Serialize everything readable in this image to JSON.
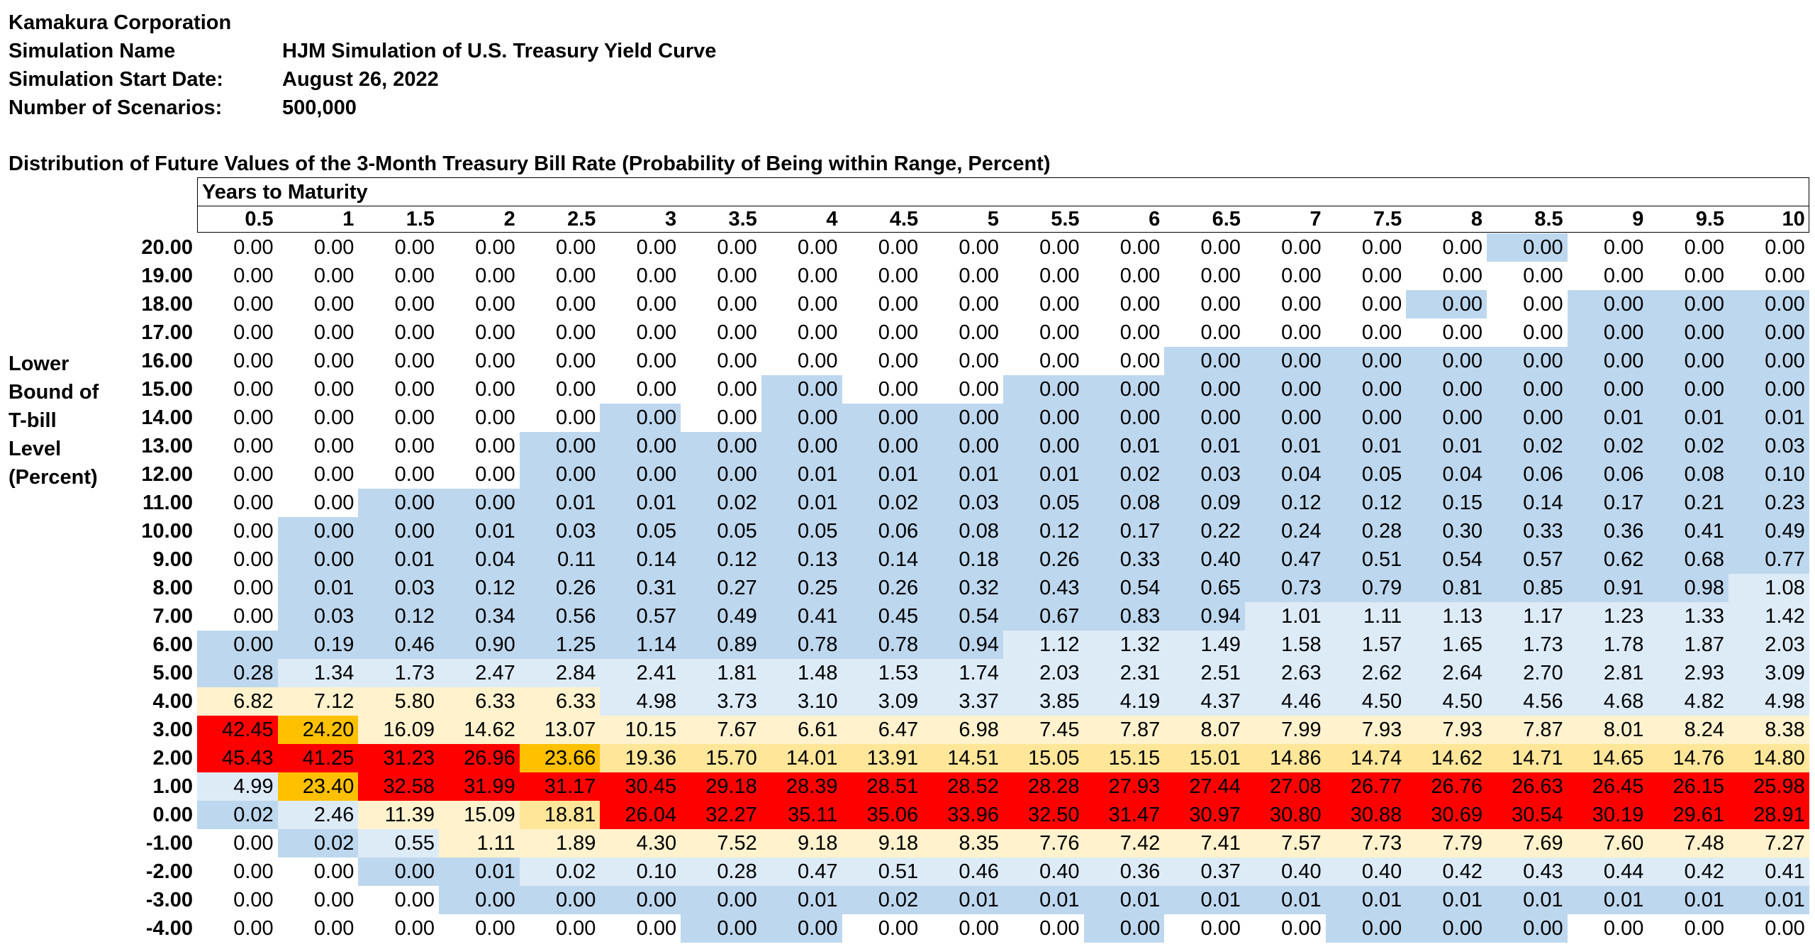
{
  "header": {
    "company": "Kamakura Corporation",
    "rows": [
      {
        "label": "Simulation Name",
        "value": "HJM Simulation of U.S. Treasury Yield Curve"
      },
      {
        "label": "Simulation Start Date:",
        "value": "August 26, 2022"
      },
      {
        "label": "Number of Scenarios:",
        "value": "500,000"
      }
    ]
  },
  "table_title": "Distribution of Future Values of the 3-Month Treasury Bill Rate (Probability of Being within Range, Percent)",
  "row_axis_label_lines": [
    "Lower",
    "Bound of",
    "T-bill",
    "Level",
    "(Percent)"
  ],
  "column_axis_label": "Years to Maturity",
  "columns": [
    "0.5",
    "1",
    "1.5",
    "2",
    "2.5",
    "3",
    "3.5",
    "4",
    "4.5",
    "5",
    "5.5",
    "6",
    "6.5",
    "7",
    "7.5",
    "8",
    "8.5",
    "9",
    "9.5",
    "10"
  ],
  "rows": [
    {
      "lower": "20.00",
      "values": [
        "0.00",
        "0.00",
        "0.00",
        "0.00",
        "0.00",
        "0.00",
        "0.00",
        "0.00",
        "0.00",
        "0.00",
        "0.00",
        "0.00",
        "0.00",
        "0.00",
        "0.00",
        "0.00",
        "0.00",
        "0.00",
        "0.00",
        "0.00"
      ]
    },
    {
      "lower": "19.00",
      "values": [
        "0.00",
        "0.00",
        "0.00",
        "0.00",
        "0.00",
        "0.00",
        "0.00",
        "0.00",
        "0.00",
        "0.00",
        "0.00",
        "0.00",
        "0.00",
        "0.00",
        "0.00",
        "0.00",
        "0.00",
        "0.00",
        "0.00",
        "0.00"
      ]
    },
    {
      "lower": "18.00",
      "values": [
        "0.00",
        "0.00",
        "0.00",
        "0.00",
        "0.00",
        "0.00",
        "0.00",
        "0.00",
        "0.00",
        "0.00",
        "0.00",
        "0.00",
        "0.00",
        "0.00",
        "0.00",
        "0.00",
        "0.00",
        "0.00",
        "0.00",
        "0.00"
      ]
    },
    {
      "lower": "17.00",
      "values": [
        "0.00",
        "0.00",
        "0.00",
        "0.00",
        "0.00",
        "0.00",
        "0.00",
        "0.00",
        "0.00",
        "0.00",
        "0.00",
        "0.00",
        "0.00",
        "0.00",
        "0.00",
        "0.00",
        "0.00",
        "0.00",
        "0.00",
        "0.00"
      ]
    },
    {
      "lower": "16.00",
      "values": [
        "0.00",
        "0.00",
        "0.00",
        "0.00",
        "0.00",
        "0.00",
        "0.00",
        "0.00",
        "0.00",
        "0.00",
        "0.00",
        "0.00",
        "0.00",
        "0.00",
        "0.00",
        "0.00",
        "0.00",
        "0.00",
        "0.00",
        "0.00"
      ]
    },
    {
      "lower": "15.00",
      "values": [
        "0.00",
        "0.00",
        "0.00",
        "0.00",
        "0.00",
        "0.00",
        "0.00",
        "0.00",
        "0.00",
        "0.00",
        "0.00",
        "0.00",
        "0.00",
        "0.00",
        "0.00",
        "0.00",
        "0.00",
        "0.00",
        "0.00",
        "0.00"
      ]
    },
    {
      "lower": "14.00",
      "values": [
        "0.00",
        "0.00",
        "0.00",
        "0.00",
        "0.00",
        "0.00",
        "0.00",
        "0.00",
        "0.00",
        "0.00",
        "0.00",
        "0.00",
        "0.00",
        "0.00",
        "0.00",
        "0.00",
        "0.00",
        "0.01",
        "0.01",
        "0.01"
      ]
    },
    {
      "lower": "13.00",
      "values": [
        "0.00",
        "0.00",
        "0.00",
        "0.00",
        "0.00",
        "0.00",
        "0.00",
        "0.00",
        "0.00",
        "0.00",
        "0.00",
        "0.01",
        "0.01",
        "0.01",
        "0.01",
        "0.01",
        "0.02",
        "0.02",
        "0.02",
        "0.03"
      ]
    },
    {
      "lower": "12.00",
      "values": [
        "0.00",
        "0.00",
        "0.00",
        "0.00",
        "0.00",
        "0.00",
        "0.00",
        "0.01",
        "0.01",
        "0.01",
        "0.01",
        "0.02",
        "0.03",
        "0.04",
        "0.05",
        "0.04",
        "0.06",
        "0.06",
        "0.08",
        "0.10"
      ]
    },
    {
      "lower": "11.00",
      "values": [
        "0.00",
        "0.00",
        "0.00",
        "0.00",
        "0.01",
        "0.01",
        "0.02",
        "0.01",
        "0.02",
        "0.03",
        "0.05",
        "0.08",
        "0.09",
        "0.12",
        "0.12",
        "0.15",
        "0.14",
        "0.17",
        "0.21",
        "0.23"
      ]
    },
    {
      "lower": "10.00",
      "values": [
        "0.00",
        "0.00",
        "0.00",
        "0.01",
        "0.03",
        "0.05",
        "0.05",
        "0.05",
        "0.06",
        "0.08",
        "0.12",
        "0.17",
        "0.22",
        "0.24",
        "0.28",
        "0.30",
        "0.33",
        "0.36",
        "0.41",
        "0.49"
      ]
    },
    {
      "lower": "9.00",
      "values": [
        "0.00",
        "0.00",
        "0.01",
        "0.04",
        "0.11",
        "0.14",
        "0.12",
        "0.13",
        "0.14",
        "0.18",
        "0.26",
        "0.33",
        "0.40",
        "0.47",
        "0.51",
        "0.54",
        "0.57",
        "0.62",
        "0.68",
        "0.77"
      ]
    },
    {
      "lower": "8.00",
      "values": [
        "0.00",
        "0.01",
        "0.03",
        "0.12",
        "0.26",
        "0.31",
        "0.27",
        "0.25",
        "0.26",
        "0.32",
        "0.43",
        "0.54",
        "0.65",
        "0.73",
        "0.79",
        "0.81",
        "0.85",
        "0.91",
        "0.98",
        "1.08"
      ]
    },
    {
      "lower": "7.00",
      "values": [
        "0.00",
        "0.03",
        "0.12",
        "0.34",
        "0.56",
        "0.57",
        "0.49",
        "0.41",
        "0.45",
        "0.54",
        "0.67",
        "0.83",
        "0.94",
        "1.01",
        "1.11",
        "1.13",
        "1.17",
        "1.23",
        "1.33",
        "1.42"
      ]
    },
    {
      "lower": "6.00",
      "values": [
        "0.00",
        "0.19",
        "0.46",
        "0.90",
        "1.25",
        "1.14",
        "0.89",
        "0.78",
        "0.78",
        "0.94",
        "1.12",
        "1.32",
        "1.49",
        "1.58",
        "1.57",
        "1.65",
        "1.73",
        "1.78",
        "1.87",
        "2.03"
      ]
    },
    {
      "lower": "5.00",
      "values": [
        "0.28",
        "1.34",
        "1.73",
        "2.47",
        "2.84",
        "2.41",
        "1.81",
        "1.48",
        "1.53",
        "1.74",
        "2.03",
        "2.31",
        "2.51",
        "2.63",
        "2.62",
        "2.64",
        "2.70",
        "2.81",
        "2.93",
        "3.09"
      ]
    },
    {
      "lower": "4.00",
      "values": [
        "6.82",
        "7.12",
        "5.80",
        "6.33",
        "6.33",
        "4.98",
        "3.73",
        "3.10",
        "3.09",
        "3.37",
        "3.85",
        "4.19",
        "4.37",
        "4.46",
        "4.50",
        "4.50",
        "4.56",
        "4.68",
        "4.82",
        "4.98"
      ]
    },
    {
      "lower": "3.00",
      "values": [
        "42.45",
        "24.20",
        "16.09",
        "14.62",
        "13.07",
        "10.15",
        "7.67",
        "6.61",
        "6.47",
        "6.98",
        "7.45",
        "7.87",
        "8.07",
        "7.99",
        "7.93",
        "7.93",
        "7.87",
        "8.01",
        "8.24",
        "8.38"
      ]
    },
    {
      "lower": "2.00",
      "values": [
        "45.43",
        "41.25",
        "31.23",
        "26.96",
        "23.66",
        "19.36",
        "15.70",
        "14.01",
        "13.91",
        "14.51",
        "15.05",
        "15.15",
        "15.01",
        "14.86",
        "14.74",
        "14.62",
        "14.71",
        "14.65",
        "14.76",
        "14.80"
      ]
    },
    {
      "lower": "1.00",
      "values": [
        "4.99",
        "23.40",
        "32.58",
        "31.99",
        "31.17",
        "30.45",
        "29.18",
        "28.39",
        "28.51",
        "28.52",
        "28.28",
        "27.93",
        "27.44",
        "27.08",
        "26.77",
        "26.76",
        "26.63",
        "26.45",
        "26.15",
        "25.98"
      ]
    },
    {
      "lower": "0.00",
      "values": [
        "0.02",
        "2.46",
        "11.39",
        "15.09",
        "18.81",
        "26.04",
        "32.27",
        "35.11",
        "35.06",
        "33.96",
        "32.50",
        "31.47",
        "30.97",
        "30.80",
        "30.88",
        "30.69",
        "30.54",
        "30.19",
        "29.61",
        "28.91"
      ]
    },
    {
      "lower": "-1.00",
      "values": [
        "0.00",
        "0.02",
        "0.55",
        "1.11",
        "1.89",
        "4.30",
        "7.52",
        "9.18",
        "9.18",
        "8.35",
        "7.76",
        "7.42",
        "7.41",
        "7.57",
        "7.73",
        "7.79",
        "7.69",
        "7.60",
        "7.48",
        "7.27"
      ]
    },
    {
      "lower": "-2.00",
      "values": [
        "0.00",
        "0.00",
        "0.00",
        "0.01",
        "0.02",
        "0.10",
        "0.28",
        "0.47",
        "0.51",
        "0.46",
        "0.40",
        "0.36",
        "0.37",
        "0.40",
        "0.40",
        "0.42",
        "0.43",
        "0.44",
        "0.42",
        "0.41"
      ]
    },
    {
      "lower": "-3.00",
      "values": [
        "0.00",
        "0.00",
        "0.00",
        "0.00",
        "0.00",
        "0.00",
        "0.00",
        "0.01",
        "0.02",
        "0.01",
        "0.01",
        "0.01",
        "0.01",
        "0.01",
        "0.01",
        "0.01",
        "0.01",
        "0.01",
        "0.01",
        "0.01"
      ]
    },
    {
      "lower": "-4.00",
      "values": [
        "0.00",
        "0.00",
        "0.00",
        "0.00",
        "0.00",
        "0.00",
        "0.00",
        "0.00",
        "0.00",
        "0.00",
        "0.00",
        "0.00",
        "0.00",
        "0.00",
        "0.00",
        "0.00",
        "0.00",
        "0.00",
        "0.00",
        "0.00"
      ]
    }
  ],
  "cell_shading": [
    "00000000000000001000",
    "00000000000000000000",
    "00000000000000010111",
    "00000000000000000111",
    "00000000000011111111",
    "00000001001111111111",
    "00000101111111111111",
    "00001111111111111111",
    "00001111111111111111",
    "00111111111111111111",
    "01111111111111111111",
    "01111111111111111111",
    "01111111111111111112",
    "01111111111112222222",
    "11111111112222222222",
    "12222222222222222222",
    "33333222222222222222",
    "65333333333333333333",
    "66665444444444444444",
    "25666666666666666666",
    "12334666666666666666",
    "01233333333333333333",
    "00112222222222222222",
    "00011111111111111111",
    "00000011000100111000"
  ],
  "shade_colors": {
    "0": "#ffffff",
    "1": "#bdd7ee",
    "2": "#ddebf7",
    "3": "#fff2cc",
    "4": "#ffe699",
    "5": "#ffc000",
    "6": "#ff0000"
  }
}
